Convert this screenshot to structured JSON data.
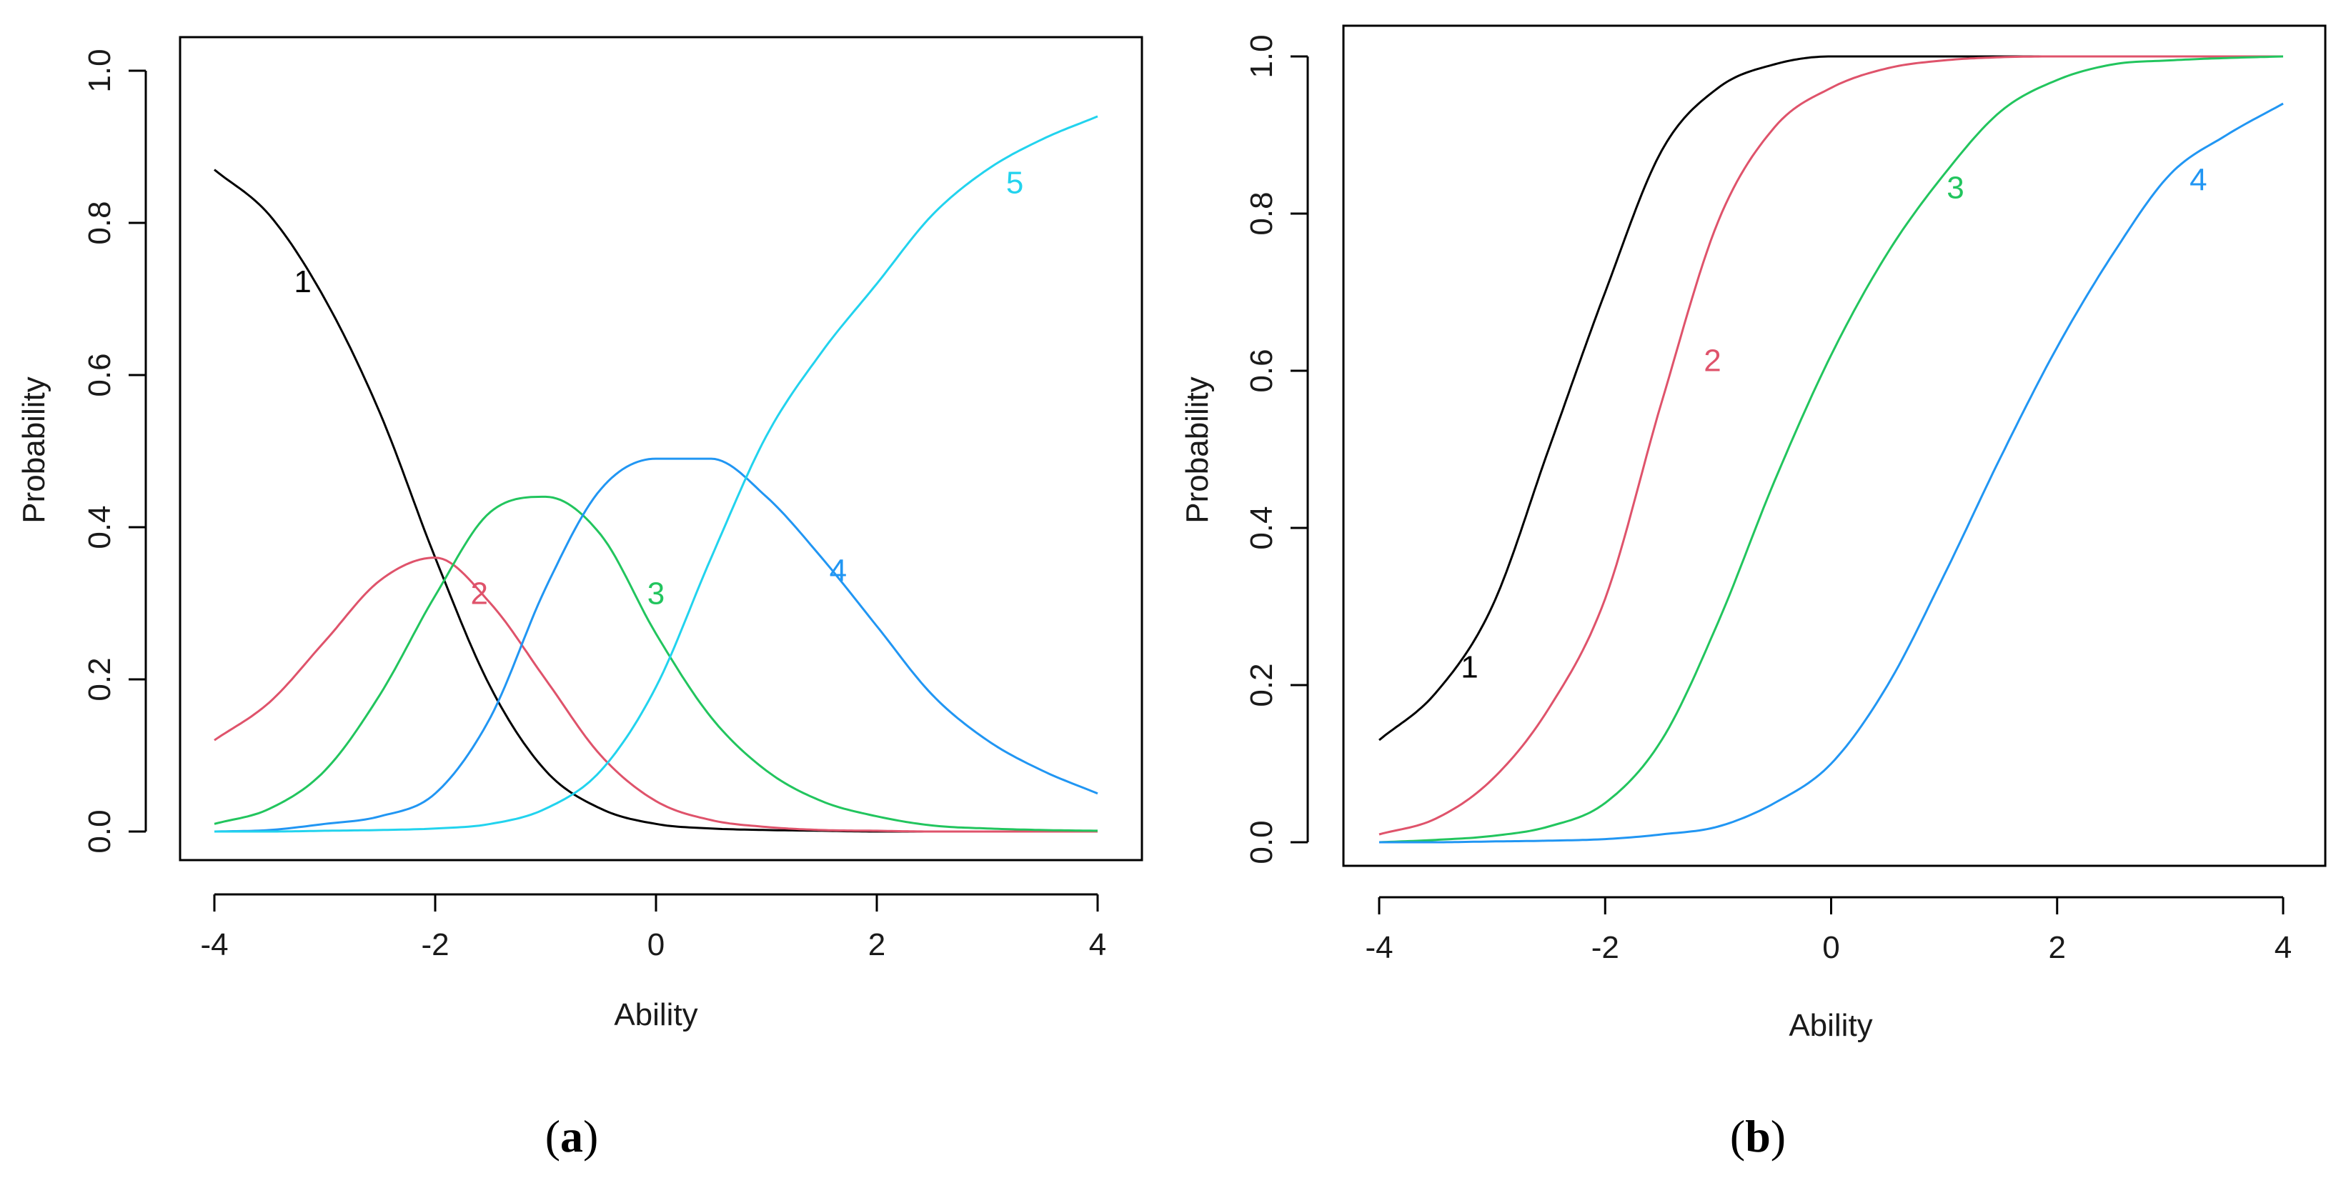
{
  "chart_data": [
    {
      "type": "line",
      "panel_caption": "(a)",
      "caption_letter": "a",
      "xlabel": "Ability",
      "ylabel": "Probability",
      "xlim": [
        -4,
        4
      ],
      "ylim": [
        0,
        1
      ],
      "x_ticks": [
        -4,
        -2,
        0,
        2,
        4
      ],
      "x_tick_labels": [
        "-4",
        "-2",
        "0",
        "2",
        "4"
      ],
      "y_ticks": [
        0,
        0.2,
        0.4,
        0.6,
        0.8,
        1.0
      ],
      "y_tick_labels": [
        "0.0",
        "0.2",
        "0.4",
        "0.6",
        "0.8",
        "1.0"
      ],
      "x": [
        -4,
        -3.5,
        -3,
        -2.5,
        -2,
        -1.5,
        -1,
        -0.5,
        0,
        0.5,
        1,
        1.5,
        2,
        2.5,
        3,
        3.5,
        4
      ],
      "series": [
        {
          "name": "1",
          "label": "1",
          "color": "#000000",
          "label_at": [
            -3.2,
            0.72
          ],
          "values": [
            0.87,
            0.81,
            0.7,
            0.55,
            0.36,
            0.19,
            0.08,
            0.03,
            0.01,
            0.004,
            0.002,
            0.001,
            0.0,
            0.0,
            0.0,
            0.0,
            0.0
          ]
        },
        {
          "name": "2",
          "label": "2",
          "color": "#df536b",
          "label_at": [
            -1.6,
            0.31
          ],
          "values": [
            0.12,
            0.17,
            0.25,
            0.33,
            0.36,
            0.3,
            0.2,
            0.1,
            0.04,
            0.015,
            0.006,
            0.002,
            0.001,
            0.0,
            0.0,
            0.0,
            0.0
          ]
        },
        {
          "name": "3",
          "label": "3",
          "color": "#22c55e",
          "label_at": [
            0.0,
            0.31
          ],
          "values": [
            0.01,
            0.03,
            0.08,
            0.18,
            0.31,
            0.42,
            0.44,
            0.39,
            0.26,
            0.15,
            0.08,
            0.04,
            0.02,
            0.008,
            0.004,
            0.002,
            0.001
          ]
        },
        {
          "name": "4",
          "label": "4",
          "color": "#2196f3",
          "label_at": [
            1.65,
            0.34
          ],
          "values": [
            0.0,
            0.002,
            0.01,
            0.02,
            0.05,
            0.15,
            0.32,
            0.45,
            0.49,
            0.49,
            0.44,
            0.36,
            0.27,
            0.18,
            0.12,
            0.08,
            0.05
          ]
        },
        {
          "name": "5",
          "label": "5",
          "color": "#22d3ee",
          "label_at": [
            3.25,
            0.85
          ],
          "values": [
            0.0,
            0.0,
            0.001,
            0.002,
            0.004,
            0.01,
            0.03,
            0.08,
            0.19,
            0.36,
            0.52,
            0.63,
            0.72,
            0.81,
            0.87,
            0.91,
            0.94
          ]
        }
      ]
    },
    {
      "type": "line",
      "panel_caption": "(b)",
      "caption_letter": "b",
      "xlabel": "Ability",
      "ylabel": "Probability",
      "xlim": [
        -4,
        4
      ],
      "ylim": [
        0,
        1
      ],
      "x_ticks": [
        -4,
        -2,
        0,
        2,
        4
      ],
      "x_tick_labels": [
        "-4",
        "-2",
        "0",
        "2",
        "4"
      ],
      "y_ticks": [
        0,
        0.2,
        0.4,
        0.6,
        0.8,
        1.0
      ],
      "y_tick_labels": [
        "0.0",
        "0.2",
        "0.4",
        "0.6",
        "0.8",
        "1.0"
      ],
      "x": [
        -4,
        -3.5,
        -3,
        -2.5,
        -2,
        -1.5,
        -1,
        -0.5,
        0,
        0.5,
        1,
        1.5,
        2,
        2.5,
        3,
        3.5,
        4
      ],
      "series": [
        {
          "name": "1",
          "label": "1",
          "color": "#000000",
          "label_at": [
            -3.2,
            0.22
          ],
          "x_max": 2,
          "values": [
            0.13,
            0.19,
            0.3,
            0.5,
            0.7,
            0.88,
            0.96,
            0.99,
            1.0,
            1.0,
            1.0,
            1.0,
            1.0,
            1.0,
            1.0,
            1.0,
            1.0
          ]
        },
        {
          "name": "2",
          "label": "2",
          "color": "#df536b",
          "label_at": [
            -1.05,
            0.61
          ],
          "values": [
            0.01,
            0.03,
            0.08,
            0.17,
            0.31,
            0.56,
            0.79,
            0.91,
            0.96,
            0.985,
            0.995,
            0.999,
            1.0,
            1.0,
            1.0,
            1.0,
            1.0
          ]
        },
        {
          "name": "3",
          "label": "3",
          "color": "#22c55e",
          "label_at": [
            1.1,
            0.83
          ],
          "values": [
            0.0,
            0.003,
            0.008,
            0.02,
            0.05,
            0.13,
            0.28,
            0.46,
            0.62,
            0.75,
            0.85,
            0.93,
            0.97,
            0.99,
            0.995,
            0.998,
            1.0
          ]
        },
        {
          "name": "4",
          "label": "4",
          "color": "#2196f3",
          "label_at": [
            3.25,
            0.84
          ],
          "values": [
            0.0,
            0.0,
            0.001,
            0.002,
            0.004,
            0.01,
            0.02,
            0.05,
            0.1,
            0.2,
            0.34,
            0.49,
            0.63,
            0.75,
            0.85,
            0.9,
            0.94
          ]
        }
      ]
    }
  ]
}
